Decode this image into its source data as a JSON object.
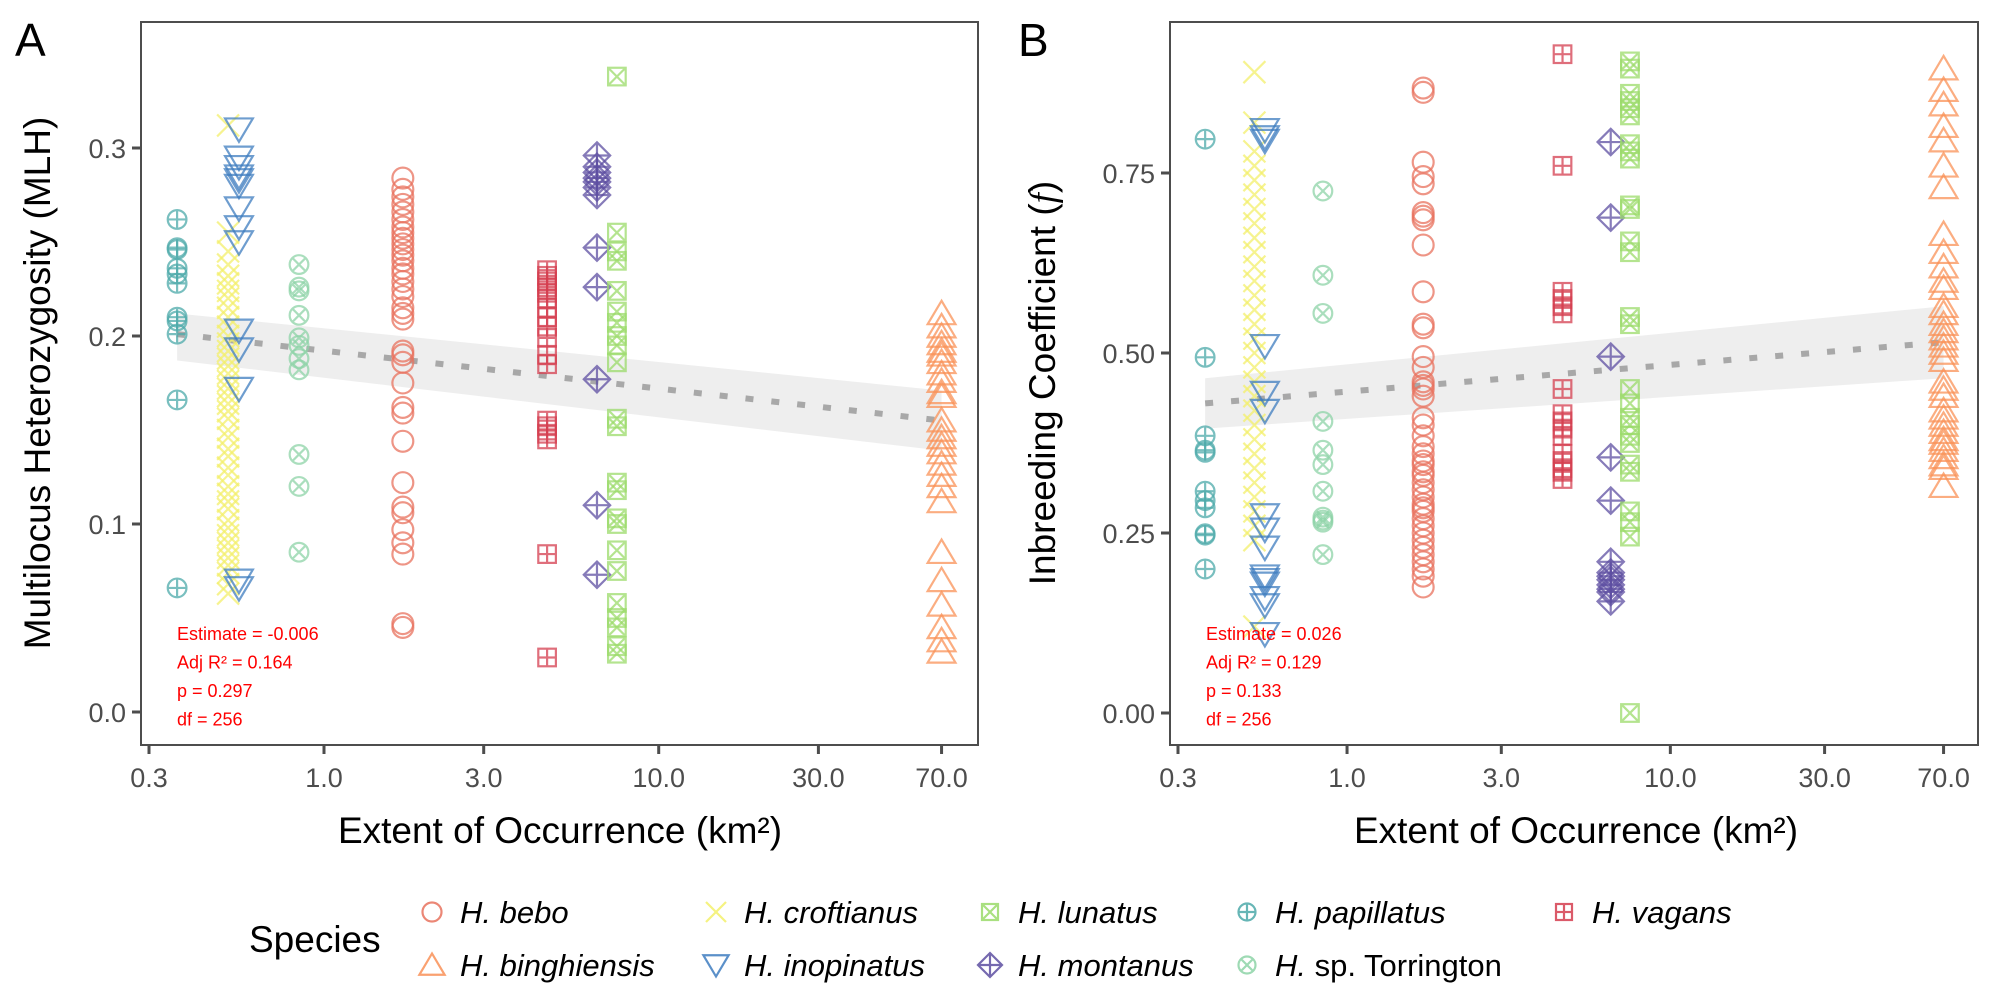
{
  "legend": {
    "title": "Species",
    "entries": [
      {
        "key": "bebo",
        "genus": "H.",
        "epithet": "bebo",
        "epithet_italic": true,
        "shape": "circle",
        "color": "#E8725E"
      },
      {
        "key": "binghiensis",
        "genus": "H.",
        "epithet": "binghiensis",
        "epithet_italic": true,
        "shape": "triangle-up",
        "color": "#F99157"
      },
      {
        "key": "croftianus",
        "genus": "H.",
        "epithet": "croftianus",
        "epithet_italic": true,
        "shape": "cross-x",
        "color": "#F4F06B"
      },
      {
        "key": "inopinatus",
        "genus": "H.",
        "epithet": "inopinatus",
        "epithet_italic": true,
        "shape": "triangle-down",
        "color": "#3E7CBF"
      },
      {
        "key": "lunatus",
        "genus": "H.",
        "epithet": "lunatus",
        "epithet_italic": true,
        "shape": "square-x",
        "color": "#9BDB6A"
      },
      {
        "key": "montanus",
        "genus": "H.",
        "epithet": "montanus",
        "epithet_italic": true,
        "shape": "diamond-plus",
        "color": "#5E4FA2"
      },
      {
        "key": "papillatus",
        "genus": "H.",
        "epithet": "papillatus",
        "epithet_italic": true,
        "shape": "circle-plus",
        "color": "#4DAAAA"
      },
      {
        "key": "torrington",
        "genus": "H.",
        "epithet": "sp. Torrington",
        "epithet_italic": false,
        "shape": "circle-x",
        "color": "#8ED4A8"
      },
      {
        "key": "vagans",
        "genus": "H.",
        "epithet": "vagans",
        "epithet_italic": true,
        "shape": "square-plus",
        "color": "#D53E4F"
      }
    ]
  },
  "chart_data": [
    {
      "panel": "A",
      "type": "scatter",
      "xscale": "log10",
      "xlabel": "Extent of Occurrence (km²)",
      "ylabel": "Multilocus Heterozygosity (MLH)",
      "xticks": [
        0.3,
        1.0,
        3.0,
        10.0,
        30.0,
        70.0
      ],
      "xtick_labels": [
        "0.3",
        "1.0",
        "3.0",
        "10.0",
        "30.0",
        "70.0"
      ],
      "yticks": [
        0.0,
        0.1,
        0.2,
        0.3
      ],
      "ytick_labels": [
        "0.0",
        "0.1",
        "0.2",
        "0.3"
      ],
      "xlim": [
        0.29,
        80
      ],
      "ylim": [
        -0.018,
        0.367
      ],
      "grid": false,
      "regression": {
        "x": [
          0.364,
          70
        ],
        "y": [
          0.201,
          0.155
        ],
        "ci_lower": [
          0.187,
          0.139
        ],
        "ci_upper": [
          0.212,
          0.171
        ],
        "style": "dotted"
      },
      "stats": [
        "Estimate = -0.006",
        "Adj R² = 0.164",
        "p = 0.297",
        "df = 256"
      ],
      "series": [
        {
          "species": "papillatus",
          "x": 0.364,
          "y": [
            0.262,
            0.247,
            0.246,
            0.236,
            0.233,
            0.228,
            0.21,
            0.208,
            0.201,
            0.166,
            0.066
          ]
        },
        {
          "species": "croftianus",
          "x": 0.517,
          "y": [
            0.312,
            0.255,
            0.245,
            0.238,
            0.232,
            0.228,
            0.224,
            0.22,
            0.215,
            0.21,
            0.205,
            0.2,
            0.196,
            0.192,
            0.188,
            0.184,
            0.18,
            0.176,
            0.172,
            0.168,
            0.164,
            0.16,
            0.156,
            0.15,
            0.146,
            0.14,
            0.136,
            0.13,
            0.126,
            0.12,
            0.116,
            0.112,
            0.108,
            0.102,
            0.098,
            0.094,
            0.09,
            0.086,
            0.082,
            0.078,
            0.074,
            0.068,
            0.063
          ]
        },
        {
          "species": "inopinatus",
          "x": 0.557,
          "y": [
            0.31,
            0.295,
            0.29,
            0.285,
            0.283,
            0.28,
            0.268,
            0.258,
            0.25,
            0.203,
            0.193,
            0.172,
            0.07,
            0.066
          ]
        },
        {
          "species": "torrington",
          "x": 0.842,
          "y": [
            0.238,
            0.226,
            0.224,
            0.211,
            0.199,
            0.195,
            0.188,
            0.182,
            0.137,
            0.12,
            0.085
          ]
        },
        {
          "species": "bebo",
          "x": 1.72,
          "y": [
            0.284,
            0.278,
            0.274,
            0.27,
            0.266,
            0.262,
            0.258,
            0.255,
            0.252,
            0.249,
            0.246,
            0.243,
            0.24,
            0.236,
            0.233,
            0.229,
            0.225,
            0.221,
            0.215,
            0.212,
            0.209,
            0.192,
            0.19,
            0.186,
            0.175,
            0.162,
            0.159,
            0.144,
            0.122,
            0.109,
            0.106,
            0.097,
            0.09,
            0.084,
            0.047,
            0.045
          ]
        },
        {
          "species": "vagans",
          "x": 4.64,
          "y": [
            0.235,
            0.232,
            0.229,
            0.226,
            0.223,
            0.22,
            0.215,
            0.21,
            0.205,
            0.199,
            0.19,
            0.185,
            0.155,
            0.152,
            0.148,
            0.145,
            0.084,
            0.029
          ]
        },
        {
          "species": "montanus",
          "x": 6.54,
          "y": [
            0.296,
            0.29,
            0.287,
            0.284,
            0.282,
            0.279,
            0.275,
            0.247,
            0.226,
            0.177,
            0.11,
            0.073
          ]
        },
        {
          "species": "lunatus",
          "x": 7.5,
          "y": [
            0.338,
            0.255,
            0.245,
            0.24,
            0.224,
            0.213,
            0.207,
            0.2,
            0.195,
            0.186,
            0.156,
            0.152,
            0.122,
            0.118,
            0.103,
            0.1,
            0.086,
            0.075,
            0.058,
            0.05,
            0.045,
            0.035,
            0.031
          ]
        },
        {
          "species": "binghiensis",
          "x": 70,
          "y": [
            0.212,
            0.205,
            0.2,
            0.196,
            0.192,
            0.19,
            0.186,
            0.18,
            0.176,
            0.17,
            0.168,
            0.155,
            0.15,
            0.146,
            0.142,
            0.138,
            0.132,
            0.126,
            0.12,
            0.112,
            0.085,
            0.07,
            0.057,
            0.045,
            0.038,
            0.032
          ]
        }
      ]
    },
    {
      "panel": "B",
      "type": "scatter",
      "xscale": "log10",
      "xlabel": "Extent of Occurrence (km²)",
      "ylabel": "Inbreeding Coefficient (f)",
      "xticks": [
        0.3,
        1.0,
        3.0,
        10.0,
        30.0,
        70.0
      ],
      "xtick_labels": [
        "0.3",
        "1.0",
        "3.0",
        "10.0",
        "30.0",
        "70.0"
      ],
      "yticks": [
        0.0,
        0.25,
        0.5,
        0.75
      ],
      "ytick_labels": [
        "0.00",
        "0.25",
        "0.50",
        "0.75"
      ],
      "xlim": [
        0.29,
        80
      ],
      "ylim": [
        -0.045,
        0.96
      ],
      "grid": false,
      "regression": {
        "x": [
          0.364,
          70
        ],
        "y": [
          0.43,
          0.515
        ],
        "ci_lower": [
          0.395,
          0.465
        ],
        "ci_upper": [
          0.465,
          0.565
        ],
        "style": "dotted"
      },
      "stats": [
        "Estimate = 0.026",
        "Adj R² = 0.129",
        "p = 0.133",
        "df = 256"
      ],
      "series": [
        {
          "species": "papillatus",
          "x": 0.364,
          "y": [
            0.797,
            0.494,
            0.385,
            0.365,
            0.362,
            0.308,
            0.295,
            0.285,
            0.249,
            0.247,
            0.2
          ]
        },
        {
          "species": "croftianus",
          "x": 0.517,
          "y": [
            0.89,
            0.82,
            0.78,
            0.76,
            0.74,
            0.72,
            0.7,
            0.68,
            0.66,
            0.64,
            0.62,
            0.6,
            0.58,
            0.56,
            0.54,
            0.52,
            0.5,
            0.48,
            0.46,
            0.44,
            0.42,
            0.4,
            0.38,
            0.36,
            0.34,
            0.32,
            0.3,
            0.28,
            0.26,
            0.24,
            0.12
          ]
        },
        {
          "species": "inopinatus",
          "x": 0.557,
          "y": [
            0.81,
            0.8,
            0.795,
            0.51,
            0.445,
            0.42,
            0.275,
            0.255,
            0.23,
            0.19,
            0.185,
            0.18,
            0.16,
            0.15,
            0.11
          ]
        },
        {
          "species": "torrington",
          "x": 0.842,
          "y": [
            0.725,
            0.608,
            0.555,
            0.405,
            0.365,
            0.345,
            0.308,
            0.272,
            0.268,
            0.265,
            0.22
          ]
        },
        {
          "species": "bebo",
          "x": 1.72,
          "y": [
            0.868,
            0.862,
            0.765,
            0.745,
            0.735,
            0.695,
            0.69,
            0.685,
            0.65,
            0.585,
            0.54,
            0.535,
            0.495,
            0.48,
            0.46,
            0.455,
            0.45,
            0.44,
            0.41,
            0.4,
            0.385,
            0.37,
            0.36,
            0.35,
            0.345,
            0.335,
            0.33,
            0.32,
            0.31,
            0.3,
            0.29,
            0.285,
            0.28,
            0.27,
            0.26,
            0.25,
            0.24,
            0.23,
            0.22,
            0.21,
            0.2,
            0.19,
            0.175
          ]
        },
        {
          "species": "vagans",
          "x": 4.64,
          "y": [
            0.915,
            0.76,
            0.585,
            0.575,
            0.565,
            0.555,
            0.45,
            0.415,
            0.405,
            0.395,
            0.385,
            0.36,
            0.35,
            0.34,
            0.335,
            0.325
          ]
        },
        {
          "species": "montanus",
          "x": 6.54,
          "y": [
            0.793,
            0.688,
            0.495,
            0.355,
            0.295,
            0.21,
            0.195,
            0.19,
            0.185,
            0.178,
            0.172,
            0.168,
            0.155
          ]
        },
        {
          "species": "lunatus",
          "x": 7.5,
          "y": [
            0.905,
            0.895,
            0.86,
            0.85,
            0.84,
            0.83,
            0.79,
            0.78,
            0.77,
            0.705,
            0.7,
            0.655,
            0.64,
            0.55,
            0.54,
            0.45,
            0.43,
            0.41,
            0.4,
            0.385,
            0.375,
            0.345,
            0.335,
            0.28,
            0.265,
            0.245,
            0.0
          ]
        },
        {
          "species": "binghiensis",
          "x": 70,
          "y": [
            0.895,
            0.865,
            0.845,
            0.815,
            0.795,
            0.76,
            0.73,
            0.665,
            0.64,
            0.62,
            0.6,
            0.59,
            0.565,
            0.555,
            0.54,
            0.53,
            0.52,
            0.51,
            0.5,
            0.49,
            0.46,
            0.45,
            0.44,
            0.42,
            0.41,
            0.4,
            0.39,
            0.38,
            0.375,
            0.365,
            0.355,
            0.345,
            0.34,
            0.315
          ]
        }
      ]
    }
  ]
}
